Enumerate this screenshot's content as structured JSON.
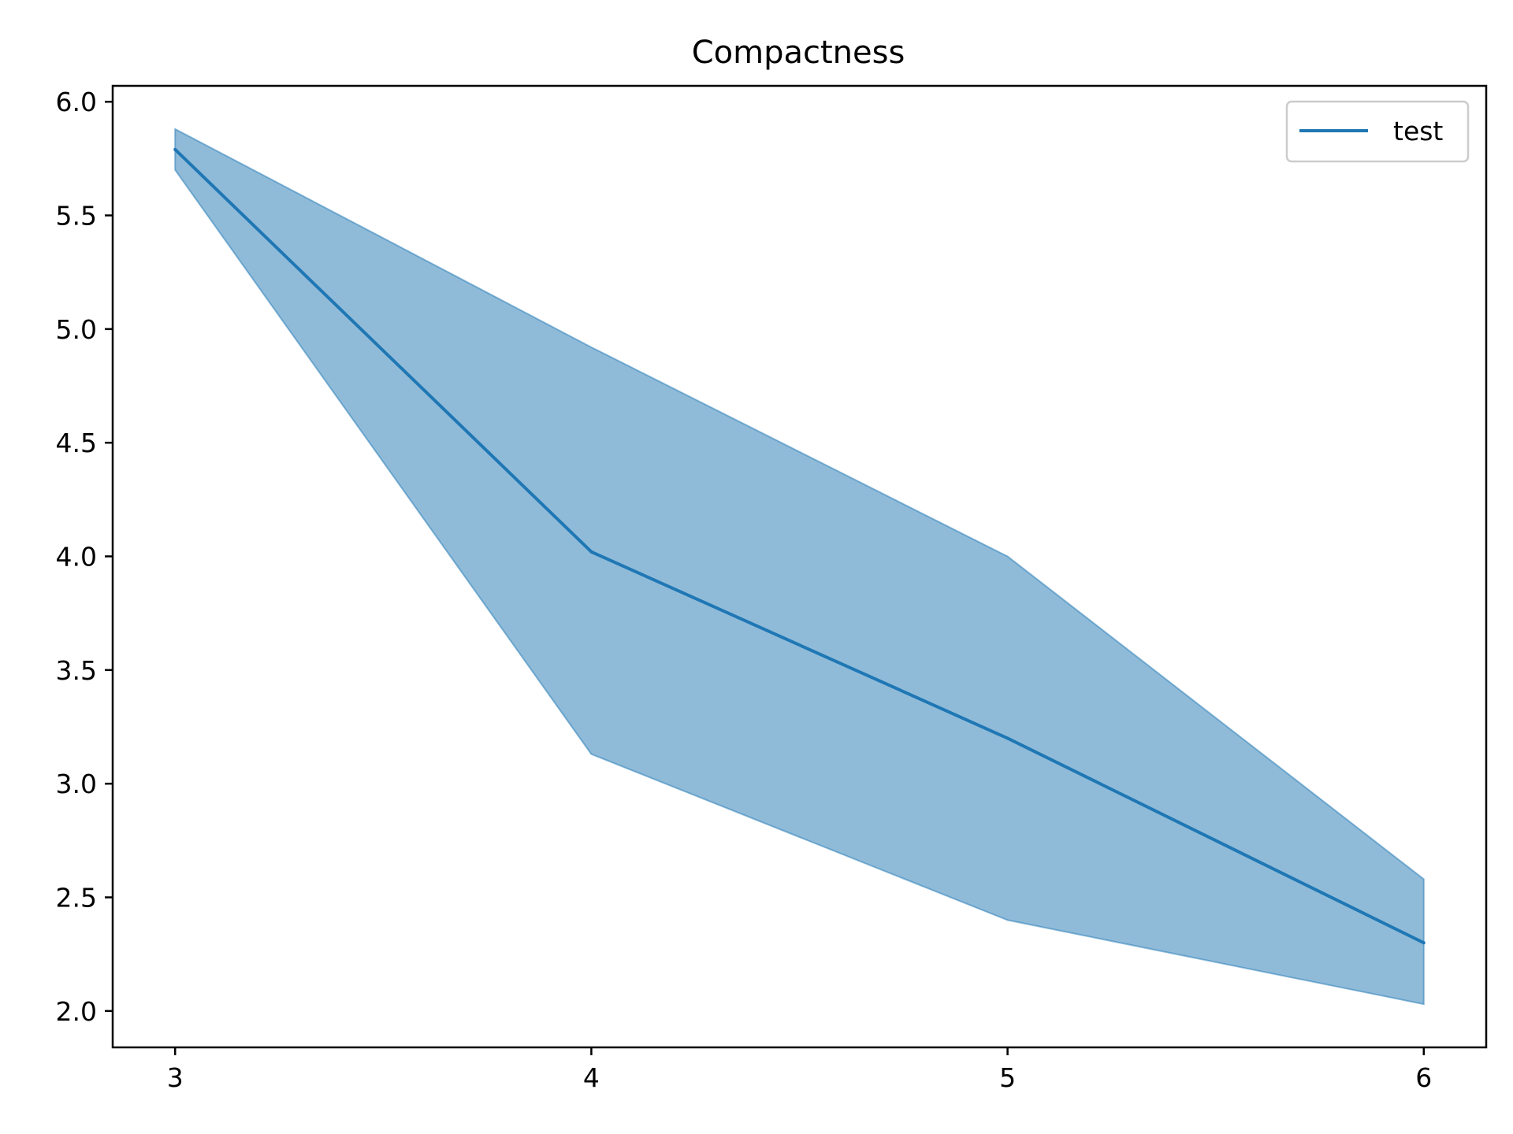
{
  "chart_data": {
    "type": "line",
    "title": "Compactness",
    "xlabel": "",
    "ylabel": "",
    "x": [
      3,
      4,
      5,
      6
    ],
    "series": [
      {
        "name": "test",
        "values": [
          5.79,
          4.02,
          3.2,
          2.3
        ],
        "lower": [
          5.7,
          3.13,
          2.4,
          2.03
        ],
        "upper": [
          5.88,
          4.92,
          4.0,
          2.58
        ]
      }
    ],
    "xticks": [
      "3",
      "4",
      "5",
      "6"
    ],
    "yticks": [
      "2.0",
      "2.5",
      "3.0",
      "3.5",
      "4.0",
      "4.5",
      "5.0",
      "5.5",
      "6.0"
    ],
    "xlim": [
      2.85,
      6.15
    ],
    "ylim": [
      1.84,
      6.07
    ],
    "grid": false,
    "legend_position": "top-right",
    "colors": {
      "line": "#1f77b4",
      "band": "#1f77b4"
    }
  }
}
